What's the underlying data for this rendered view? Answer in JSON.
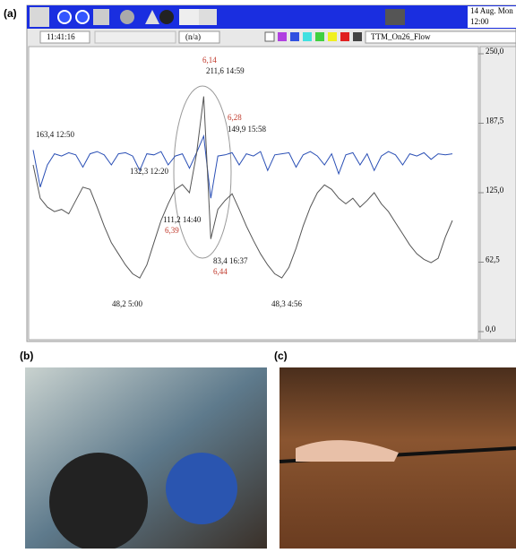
{
  "panels": {
    "a": "(a)",
    "b": "(b)",
    "c": "(c)"
  },
  "toolbar": {
    "date": "14 Aug. Mon",
    "time_top": "12:00",
    "clock": "11:41:16",
    "status": "(n/a)",
    "tag": "TTM_On26_Flow"
  },
  "chart_data": {
    "type": "line",
    "ylim": [
      0,
      250
    ],
    "yticks": [
      {
        "value": 0,
        "label": "0,0"
      },
      {
        "value": 62.5,
        "label": "62,5"
      },
      {
        "value": 125,
        "label": "125,0"
      },
      {
        "value": 187.5,
        "label": "187,5"
      },
      {
        "value": 250,
        "label": "250,0"
      }
    ],
    "series": [
      {
        "color": "#2a4fb5",
        "values": [
          163.4,
          130,
          150,
          160,
          158,
          161,
          159,
          148,
          160,
          162,
          159,
          150,
          160,
          161,
          158,
          145,
          160,
          159,
          162,
          150,
          158,
          160,
          147,
          161,
          176,
          120,
          158,
          159,
          161,
          150,
          160,
          158,
          162,
          145,
          159,
          160,
          161,
          148,
          159,
          162,
          158,
          150,
          160,
          142,
          159,
          161,
          150,
          160,
          145,
          158,
          162,
          159,
          150,
          160,
          158,
          161,
          155,
          160,
          159,
          160
        ]
      },
      {
        "color": "#555555",
        "values": [
          150,
          120,
          112,
          108,
          110,
          106,
          118,
          130,
          128,
          112,
          95,
          80,
          70,
          60,
          52,
          48.2,
          60,
          80,
          100,
          115,
          128,
          132.3,
          125,
          160,
          211.6,
          83.4,
          110,
          118,
          124,
          110,
          95,
          82,
          70,
          60,
          52,
          48.3,
          58,
          75,
          95,
          112,
          125,
          132,
          128,
          120,
          115,
          120,
          112,
          118,
          125,
          115,
          108,
          98,
          88,
          78,
          70,
          65,
          62,
          66,
          85,
          100
        ]
      }
    ],
    "annotations": [
      {
        "text": "6,14",
        "color": "#c0392b"
      },
      {
        "text": "211,6  14:59",
        "color": "#111111"
      },
      {
        "text": "6,28",
        "color": "#c0392b"
      },
      {
        "text": "149,9  15:58",
        "color": "#111111"
      },
      {
        "text": "163,4  12:50",
        "color": "#111111"
      },
      {
        "text": "132,3 12:20",
        "color": "#111111"
      },
      {
        "text": "111,2 14:40",
        "color": "#111111"
      },
      {
        "text": "6,39",
        "color": "#c0392b"
      },
      {
        "text": "83,4   16:37",
        "color": "#111111"
      },
      {
        "text": "6,44",
        "color": "#c0392b"
      },
      {
        "text": "48,2  5:00",
        "color": "#111111"
      },
      {
        "text": "48,3  4:56",
        "color": "#111111"
      }
    ]
  }
}
